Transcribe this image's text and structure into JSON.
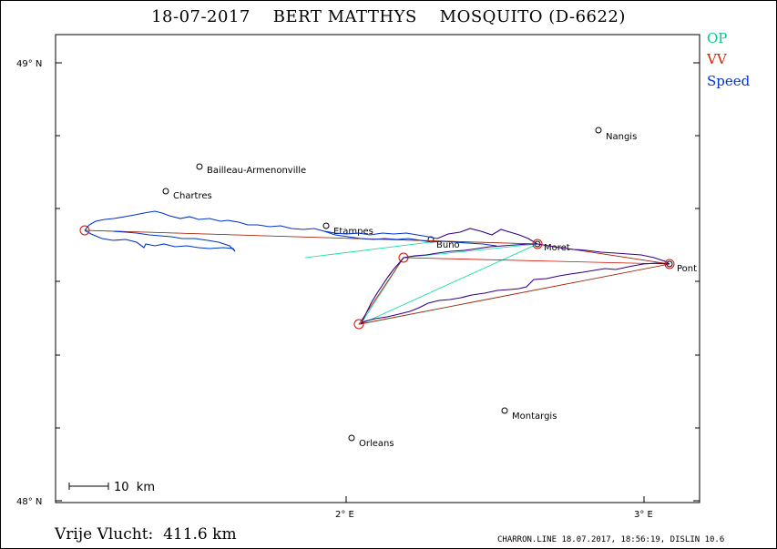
{
  "title": "18-07-2017    BERT MATTHYS    MOSQUITO (D-6622)",
  "legend": [
    {
      "label": "OP",
      "color": "#00cc88"
    },
    {
      "label": "VV",
      "color": "#dd2200"
    },
    {
      "label": "Speed",
      "color": "#0033cc"
    }
  ],
  "axes": {
    "y_labels": [
      "49° N",
      "48° N"
    ],
    "x_labels": [
      "2° E",
      "3° E"
    ]
  },
  "scale_bar": {
    "label": "10  km"
  },
  "cities": [
    "Nangis",
    "Bailleau-Armenonville",
    "Chartres",
    "Etampes",
    "Buno",
    "Moret",
    "Pont",
    "Montargis",
    "Orleans"
  ],
  "turnpoints": [
    "start",
    "Moret",
    "south",
    "mid",
    "Pont"
  ],
  "footer": {
    "distance": "Vrije Vlucht:  411.6 km",
    "program": "CHARRON.LINE 18.07.2017, 18:56:19, DISLIN 10.6"
  }
}
